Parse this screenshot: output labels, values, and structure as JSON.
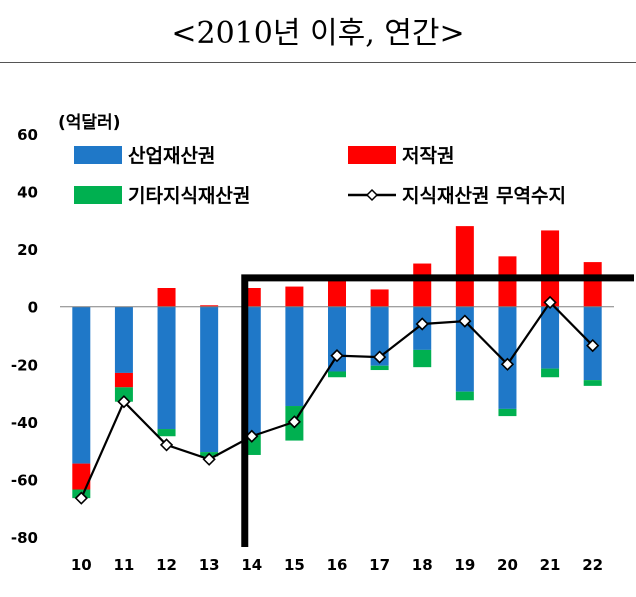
{
  "title": "<2010년 이후, 연간>",
  "chart_data": {
    "type": "bar",
    "unit_label": "(억달러)",
    "categories": [
      "10",
      "11",
      "12",
      "13",
      "14",
      "15",
      "16",
      "17",
      "18",
      "19",
      "20",
      "21",
      "22"
    ],
    "ylim": [
      -80,
      60
    ],
    "yticks": [
      "60",
      "40",
      "20",
      "0",
      "-20",
      "-40",
      "-60",
      "-80"
    ],
    "ytick_values": [
      60,
      40,
      20,
      0,
      -20,
      -40,
      -60,
      -80
    ],
    "grid": false,
    "legend_position": "top-left",
    "series": [
      {
        "name": "산업재산권",
        "kind": "bar",
        "color": "#1f78c8",
        "values": [
          -54.5,
          -23,
          -42.5,
          -50.5,
          -44.5,
          -34.5,
          -22.5,
          -20.5,
          -15,
          -29.5,
          -35.5,
          -21.5,
          -25.5
        ]
      },
      {
        "name": "저작권",
        "kind": "bar",
        "color": "#ff0000",
        "values": [
          -9,
          -5,
          6.5,
          0.5,
          6.5,
          7,
          9.5,
          6,
          15,
          28,
          17.5,
          26.5,
          15.5
        ]
      },
      {
        "name": "기타지식재산권",
        "kind": "bar",
        "color": "#00b050",
        "values": [
          -3,
          -5,
          -2.5,
          -1.5,
          -7,
          -12,
          -2,
          -1.5,
          -6,
          -3,
          -2.5,
          -3,
          -2
        ]
      },
      {
        "name": "지식재산권 무역수지",
        "kind": "line",
        "color": "#000000",
        "values": [
          -66.5,
          -33,
          -48,
          -53,
          -45,
          -40,
          -17,
          -17.5,
          -6,
          -5,
          -20,
          1.5,
          -13.5
        ]
      }
    ]
  }
}
